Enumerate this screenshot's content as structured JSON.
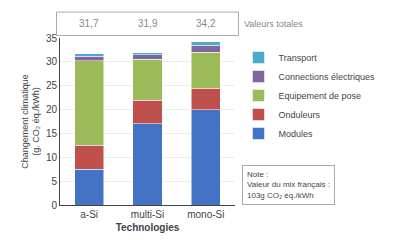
{
  "chart_data": {
    "type": "bar",
    "stacked": true,
    "categories": [
      "a-Si",
      "multi-Si",
      "mono-Si"
    ],
    "series": [
      {
        "name": "Modules",
        "color": "#4472C4",
        "values": [
          7.5,
          17.0,
          20.0
        ]
      },
      {
        "name": "Onduleurs",
        "color": "#C0504D",
        "values": [
          5.0,
          5.0,
          4.5
        ]
      },
      {
        "name": "Equipement de pose",
        "color": "#9BBB59",
        "values": [
          17.7,
          8.5,
          7.5
        ]
      },
      {
        "name": "Connections électriques",
        "color": "#8064A2",
        "values": [
          1.0,
          1.0,
          1.5
        ]
      },
      {
        "name": "Transport",
        "color": "#4BACC6",
        "values": [
          0.5,
          0.4,
          0.7
        ]
      }
    ],
    "xlabel": "Technologies",
    "ylabel": "Changement climatique\n(g. CO₂ éq./kWh)",
    "ylim": [
      0,
      35
    ],
    "yticks": [
      0,
      5,
      10,
      15,
      20,
      25,
      30,
      35
    ],
    "grid": true,
    "legend": "right",
    "annotations": [
      {
        "text": "31,7",
        "x": "a-Si"
      },
      {
        "text": "31,9",
        "x": "multi-Si"
      },
      {
        "text": "34,2",
        "x": "mono-Si"
      },
      {
        "text": "Valeurs totales"
      },
      {
        "text": "Note :\nValeur du mix français :\n103g CO₂ éq./kWh"
      }
    ]
  }
}
